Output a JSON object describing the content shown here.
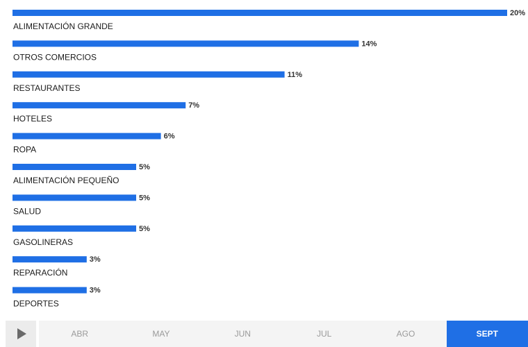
{
  "chart_data": {
    "type": "bar",
    "orientation": "horizontal",
    "categories": [
      "ALIMENTACIÓN GRANDE",
      "OTROS COMERCIOS",
      "RESTAURANTES",
      "HOTELES",
      "ROPA",
      "ALIMENTACIÓN PEQUEÑO",
      "SALUD",
      "GASOLINERAS",
      "REPARACIÓN",
      "DEPORTES"
    ],
    "values": [
      20,
      14,
      11,
      7,
      6,
      5,
      5,
      5,
      3,
      3
    ],
    "value_labels": [
      "20%",
      "14%",
      "11%",
      "7%",
      "6%",
      "5%",
      "5%",
      "5%",
      "3%",
      "3%"
    ],
    "bar_color": "#1f6fe5",
    "grid": false,
    "xlim": [
      0,
      20
    ],
    "title": "",
    "xlabel": "",
    "ylabel": ""
  },
  "timeline": {
    "play_icon": "play-icon",
    "months": [
      "ABR",
      "MAY",
      "JUN",
      "JUL",
      "AGO",
      "SEPT"
    ],
    "active_month": "SEPT",
    "active_color": "#1f6fe5"
  }
}
